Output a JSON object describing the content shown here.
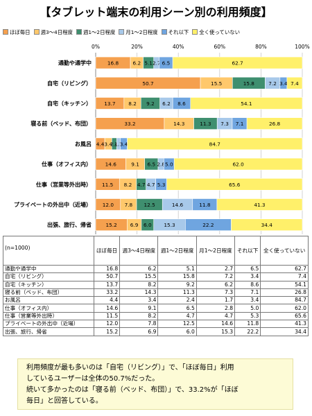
{
  "title": "【タブレット端末の利用シーン別の利用頻度】",
  "n_label": "(n=1000)",
  "colors": [
    "#f5a04e",
    "#ffc86b",
    "#3f8f6f",
    "#a8c9ea",
    "#6fa5e0",
    "#fff06a"
  ],
  "chart_data": {
    "type": "bar",
    "orientation": "horizontal",
    "stacked": true,
    "xlim": [
      0,
      100
    ],
    "x_ticks": [
      "0%",
      "20%",
      "40%",
      "60%",
      "80%",
      "100%"
    ],
    "categories": [
      "通勤や通学中",
      "自宅（リビング）",
      "自宅（キッチン）",
      "寝る前（ベッド、布団）",
      "お風呂",
      "仕事（オフィス内）",
      "仕事（営業等外出時）",
      "プライベートの外出中（近場）",
      "出張、旅行、帰省"
    ],
    "series": [
      {
        "name": "ほぼ毎日",
        "values": [
          16.8,
          50.7,
          13.7,
          33.2,
          4.4,
          14.6,
          11.5,
          12.0,
          15.2
        ]
      },
      {
        "name": "週3～4日程度",
        "values": [
          6.2,
          15.5,
          8.2,
          14.3,
          3.4,
          9.1,
          8.2,
          7.8,
          6.9
        ]
      },
      {
        "name": "週1～2日程度",
        "values": [
          5.1,
          15.8,
          9.2,
          11.3,
          2.4,
          6.5,
          4.7,
          12.5,
          6.0
        ]
      },
      {
        "name": "月1～2日程度",
        "values": [
          2.7,
          7.2,
          6.2,
          7.3,
          1.7,
          2.8,
          4.7,
          14.6,
          15.3
        ]
      },
      {
        "name": "それ以下",
        "values": [
          6.5,
          3.4,
          8.6,
          7.1,
          3.4,
          5.0,
          5.3,
          11.8,
          22.2
        ]
      },
      {
        "name": "全く使っていない",
        "values": [
          62.7,
          7.4,
          54.1,
          26.8,
          84.7,
          62.0,
          65.6,
          41.3,
          34.4
        ]
      }
    ]
  },
  "table": {
    "headers": [
      "ほぼ毎日",
      "週3～4日程度",
      "週1～2日程度",
      "月1～2日程度",
      "それ以下",
      "全く使っていない"
    ]
  },
  "note": {
    "line1": "利用頻度が最も多いのは「自宅（リビング）」で、「ほぼ毎日」利用",
    "line2": "しているユーザーは全体の50.7%だった。",
    "line3": "続いて多かったのは「寝る前（ベッド、布団）」で、33.2%が「ほぼ",
    "line4": "毎日」と回答している。"
  }
}
